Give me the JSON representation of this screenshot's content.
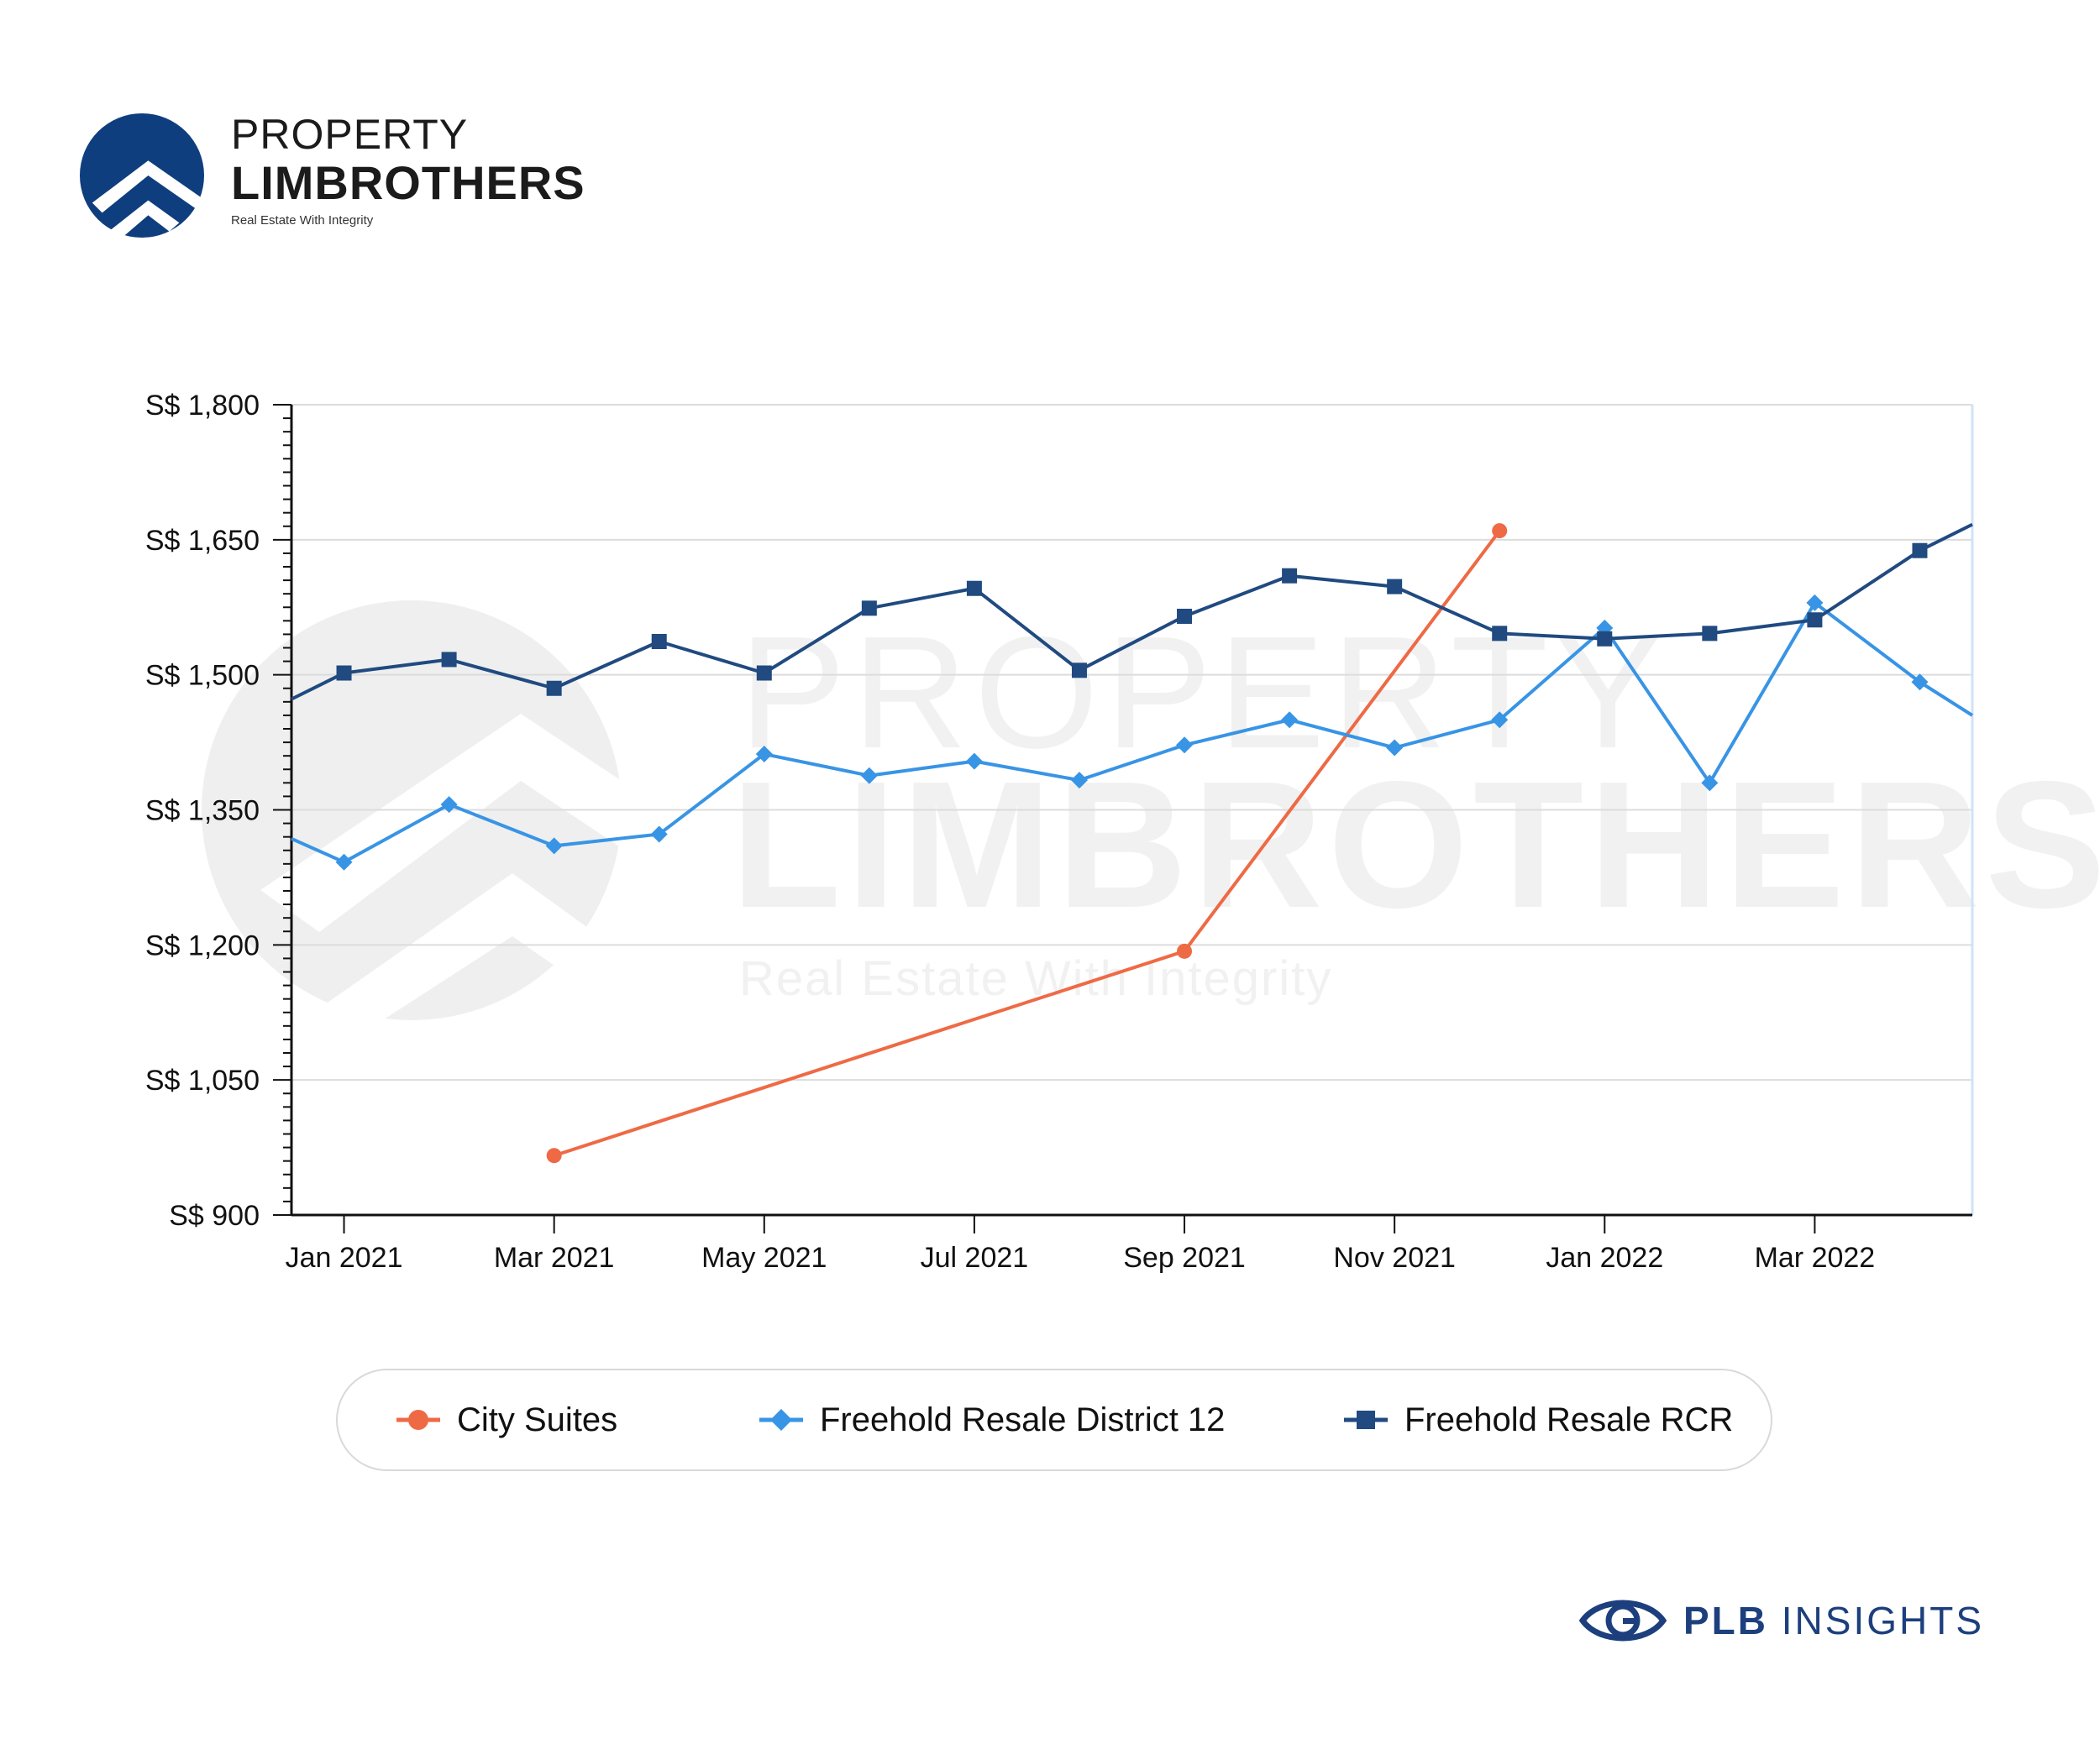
{
  "brand": {
    "line1": "PROPERTY",
    "line2": "LIMBROTHERS",
    "tagline": "Real Estate With Integrity",
    "primary_color": "#0f3e7f"
  },
  "watermark": {
    "line1": "PROPERTY",
    "line2": "LIMBROTHERS",
    "tagline": "Real Estate With Integrity"
  },
  "footer": {
    "brand_bold": "PLB",
    "brand_rest": "INSIGHTS",
    "color": "#1d3f7d"
  },
  "chart_data": {
    "type": "line",
    "title": "",
    "xlabel": "",
    "ylabel": "",
    "ylim": [
      900,
      1800
    ],
    "yticks": [
      900,
      1050,
      1200,
      1350,
      1500,
      1650,
      1800
    ],
    "ytick_labels": [
      "S$ 900",
      "S$ 1,050",
      "S$ 1,200",
      "S$ 1,350",
      "S$ 1,500",
      "S$ 1,650",
      "S$ 1,800"
    ],
    "xlim": [
      -0.5,
      15.5
    ],
    "xticks": [
      0,
      2,
      4,
      6,
      8,
      10,
      12,
      14
    ],
    "xtick_labels": [
      "Jan 2021",
      "Mar 2021",
      "May 2021",
      "Jul 2021",
      "Sep 2021",
      "Nov 2021",
      "Jan 2022",
      "Mar 2022"
    ],
    "grid": true,
    "legend_position": "bottom",
    "series": [
      {
        "name": "City Suites",
        "color": "#ee6a45",
        "marker": "circle",
        "points": [
          [
            2,
            966
          ],
          [
            8,
            1193
          ],
          [
            11,
            1660
          ]
        ]
      },
      {
        "name": "Freehold Resale District 12",
        "color": "#3894e5",
        "marker": "diamond",
        "points": [
          [
            -0.5,
            1318
          ],
          [
            0,
            1292
          ],
          [
            1,
            1356
          ],
          [
            2,
            1310
          ],
          [
            3,
            1323
          ],
          [
            4,
            1412
          ],
          [
            5,
            1388
          ],
          [
            6,
            1404
          ],
          [
            7,
            1383
          ],
          [
            8,
            1422
          ],
          [
            9,
            1450
          ],
          [
            10,
            1419
          ],
          [
            11,
            1450
          ],
          [
            12,
            1552
          ],
          [
            13,
            1380
          ],
          [
            14,
            1580
          ],
          [
            15,
            1492
          ],
          [
            15.5,
            1455
          ]
        ]
      },
      {
        "name": "Freehold Resale RCR",
        "color": "#204a80",
        "marker": "square",
        "points": [
          [
            -0.5,
            1473
          ],
          [
            0,
            1502
          ],
          [
            1,
            1517
          ],
          [
            2,
            1485
          ],
          [
            3,
            1537
          ],
          [
            4,
            1502
          ],
          [
            5,
            1574
          ],
          [
            6,
            1596
          ],
          [
            7,
            1505
          ],
          [
            8,
            1565
          ],
          [
            9,
            1610
          ],
          [
            10,
            1598
          ],
          [
            11,
            1546
          ],
          [
            12,
            1540
          ],
          [
            13,
            1546
          ],
          [
            14,
            1561
          ],
          [
            15,
            1638
          ],
          [
            15.5,
            1667
          ]
        ]
      }
    ]
  }
}
